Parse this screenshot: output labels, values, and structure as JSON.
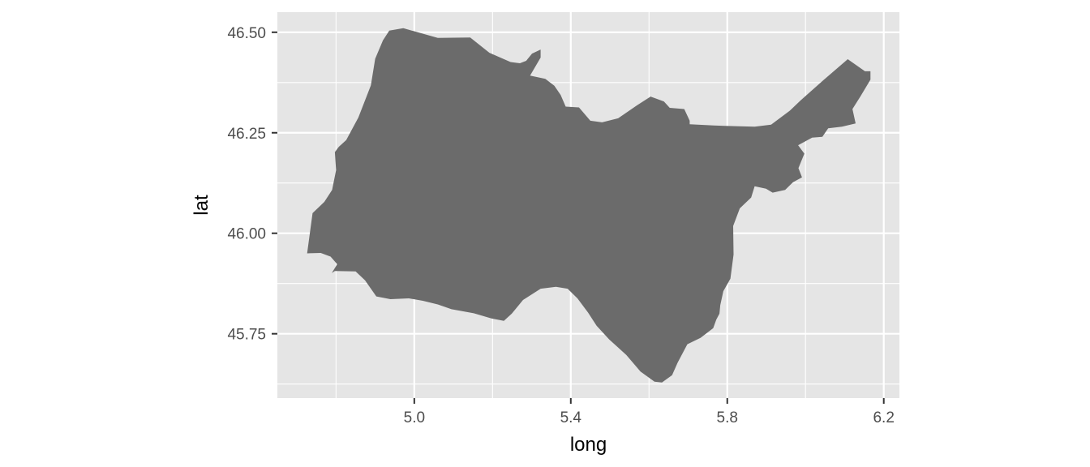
{
  "chart_data": {
    "type": "map",
    "xlabel": "long",
    "ylabel": "lat",
    "xlim": [
      4.65,
      6.24
    ],
    "ylim": [
      45.59,
      46.55
    ],
    "x_ticks": [
      {
        "value": 5.0,
        "label": "5.0"
      },
      {
        "value": 5.4,
        "label": "5.4"
      },
      {
        "value": 5.8,
        "label": "5.8"
      },
      {
        "value": 6.2,
        "label": "6.2"
      }
    ],
    "x_minor": [
      4.8,
      5.2,
      5.6,
      6.0
    ],
    "y_ticks": [
      {
        "value": 45.75,
        "label": "45.75"
      },
      {
        "value": 46.0,
        "label": "46.00"
      },
      {
        "value": 46.25,
        "label": "46.25"
      },
      {
        "value": 46.5,
        "label": "46.50"
      }
    ],
    "y_minor": [
      45.625,
      45.875,
      46.125,
      46.375
    ],
    "grid": true,
    "colors": {
      "panel": "#e5e5e5",
      "grid": "#ffffff",
      "fill": "#6b6b6b"
    },
    "region": {
      "coordinates": [
        [
          4.936,
          46.504
        ],
        [
          4.972,
          46.51
        ],
        [
          5.06,
          46.486
        ],
        [
          5.143,
          46.487
        ],
        [
          5.192,
          46.449
        ],
        [
          5.246,
          46.426
        ],
        [
          5.27,
          46.423
        ],
        [
          5.286,
          46.429
        ],
        [
          5.301,
          46.447
        ],
        [
          5.323,
          46.457
        ],
        [
          5.323,
          46.437
        ],
        [
          5.296,
          46.392
        ],
        [
          5.335,
          46.384
        ],
        [
          5.358,
          46.367
        ],
        [
          5.374,
          46.344
        ],
        [
          5.387,
          46.315
        ],
        [
          5.421,
          46.313
        ],
        [
          5.45,
          46.28
        ],
        [
          5.48,
          46.276
        ],
        [
          5.521,
          46.286
        ],
        [
          5.569,
          46.318
        ],
        [
          5.604,
          46.34
        ],
        [
          5.638,
          46.328
        ],
        [
          5.653,
          46.312
        ],
        [
          5.69,
          46.309
        ],
        [
          5.704,
          46.28
        ],
        [
          5.704,
          46.271
        ],
        [
          5.765,
          46.268
        ],
        [
          5.87,
          46.265
        ],
        [
          5.912,
          46.27
        ],
        [
          5.96,
          46.305
        ],
        [
          5.988,
          46.331
        ],
        [
          6.046,
          46.381
        ],
        [
          6.108,
          46.433
        ],
        [
          6.152,
          46.403
        ],
        [
          6.166,
          46.403
        ],
        [
          6.166,
          46.382
        ],
        [
          6.14,
          46.34
        ],
        [
          6.12,
          46.309
        ],
        [
          6.128,
          46.273
        ],
        [
          6.093,
          46.265
        ],
        [
          6.058,
          46.261
        ],
        [
          6.043,
          46.24
        ],
        [
          6.017,
          46.238
        ],
        [
          5.981,
          46.219
        ],
        [
          5.997,
          46.198
        ],
        [
          5.982,
          46.162
        ],
        [
          5.991,
          46.139
        ],
        [
          5.968,
          46.127
        ],
        [
          5.948,
          46.108
        ],
        [
          5.916,
          46.101
        ],
        [
          5.899,
          46.111
        ],
        [
          5.87,
          46.117
        ],
        [
          5.861,
          46.089
        ],
        [
          5.832,
          46.062
        ],
        [
          5.815,
          46.018
        ],
        [
          5.816,
          45.947
        ],
        [
          5.808,
          45.887
        ],
        [
          5.79,
          45.856
        ],
        [
          5.782,
          45.821
        ],
        [
          5.78,
          45.8
        ],
        [
          5.772,
          45.785
        ],
        [
          5.764,
          45.764
        ],
        [
          5.732,
          45.74
        ],
        [
          5.698,
          45.724
        ],
        [
          5.673,
          45.678
        ],
        [
          5.659,
          45.647
        ],
        [
          5.633,
          45.629
        ],
        [
          5.614,
          45.631
        ],
        [
          5.578,
          45.656
        ],
        [
          5.542,
          45.697
        ],
        [
          5.498,
          45.736
        ],
        [
          5.466,
          45.77
        ],
        [
          5.444,
          45.803
        ],
        [
          5.417,
          45.838
        ],
        [
          5.392,
          45.862
        ],
        [
          5.362,
          45.867
        ],
        [
          5.323,
          45.862
        ],
        [
          5.278,
          45.834
        ],
        [
          5.249,
          45.8
        ],
        [
          5.229,
          45.782
        ],
        [
          5.197,
          45.788
        ],
        [
          5.152,
          45.801
        ],
        [
          5.095,
          45.811
        ],
        [
          5.06,
          45.823
        ],
        [
          5.022,
          45.832
        ],
        [
          4.986,
          45.838
        ],
        [
          4.939,
          45.836
        ],
        [
          4.903,
          45.843
        ],
        [
          4.874,
          45.883
        ],
        [
          4.85,
          45.905
        ],
        [
          4.797,
          45.906
        ],
        [
          4.789,
          45.901
        ],
        [
          4.803,
          45.923
        ],
        [
          4.786,
          45.942
        ],
        [
          4.761,
          45.951
        ],
        [
          4.726,
          45.95
        ],
        [
          4.74,
          46.05
        ],
        [
          4.77,
          46.078
        ],
        [
          4.79,
          46.108
        ],
        [
          4.8,
          46.157
        ],
        [
          4.797,
          46.202
        ],
        [
          4.807,
          46.215
        ],
        [
          4.826,
          46.232
        ],
        [
          4.857,
          46.288
        ],
        [
          4.889,
          46.368
        ],
        [
          4.9,
          46.434
        ],
        [
          4.92,
          46.48
        ]
      ]
    }
  }
}
